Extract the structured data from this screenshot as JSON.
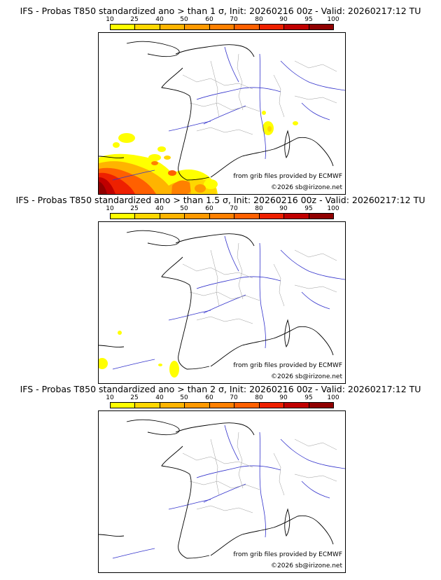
{
  "colorbar": {
    "ticks": [
      "10",
      "25",
      "40",
      "50",
      "60",
      "70",
      "80",
      "90",
      "95",
      "100"
    ],
    "colors": [
      "#ffff00",
      "#ffd700",
      "#ffb400",
      "#ff9900",
      "#ff8000",
      "#ff6000",
      "#ee2000",
      "#c00000",
      "#900000",
      "#550000"
    ]
  },
  "panels": [
    {
      "title": "IFS - Probas T850  standardized ano > than 1 σ, Init: 20260216 00z - Valid: 20260217:12 TU",
      "credit_grib": "from grib files provided by ECMWF",
      "credit_site": "©2026 sb@irizone.net"
    },
    {
      "title": "IFS - Probas T850  standardized ano > than 1.5 σ, Init: 20260216 00z - Valid: 20260217:12 TU",
      "credit_grib": "from grib files provided by ECMWF",
      "credit_site": "©2026 sb@irizone.net"
    },
    {
      "title": "IFS - Probas T850  standardized ano > than 2 σ, Init: 20260216 00z - Valid: 20260217:12 TU",
      "credit_grib": "from grib files provided by ECMWF",
      "credit_site": "©2026 sb@irizone.net"
    }
  ]
}
